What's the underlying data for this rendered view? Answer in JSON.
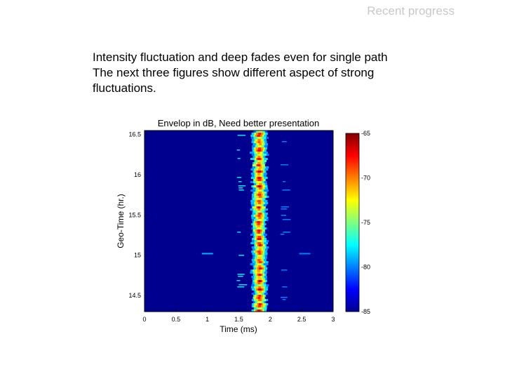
{
  "slide": {
    "section_title": "Recent progress",
    "body_lines": [
      "Intensity fluctuation and deep fades even for single path",
      "The next three figures show different aspect of strong",
      "fluctuations."
    ]
  },
  "chart_data": {
    "type": "heatmap",
    "title": "Envelop in dB, Need better presentation",
    "xlabel": "Time (ms)",
    "ylabel": "Geo-Time (hr.)",
    "xlim": [
      0,
      3
    ],
    "ylim": [
      14.3,
      16.55
    ],
    "x_ticks": [
      "0",
      "0.5",
      "1",
      "1.5",
      "2",
      "2.5",
      "3"
    ],
    "x_tick_values": [
      0,
      0.5,
      1,
      1.5,
      2,
      2.5,
      3
    ],
    "y_ticks": [
      "14.5",
      "15",
      "15.5",
      "16",
      "16.5"
    ],
    "y_tick_values": [
      14.5,
      15,
      15.5,
      16,
      16.5
    ],
    "colorbar": {
      "min": -85,
      "max": -65,
      "ticks": [
        "-65",
        "-70",
        "-75",
        "-80",
        "-85"
      ],
      "tick_values": [
        -65,
        -70,
        -75,
        -80,
        -85
      ],
      "colormap": "jet"
    },
    "background_level_db": -84,
    "main_arrival": {
      "center_time_ms": 1.83,
      "width_ms": 0.12,
      "peak_db": -66
    },
    "side_arrivals": [
      {
        "time_ms": 1.52,
        "level_db": -78
      },
      {
        "time_ms": 2.22,
        "level_db": -80
      }
    ],
    "isolated_streaks": [
      {
        "geo_time_hr": 15.02,
        "time_ms": 1.0,
        "level_db": -79
      },
      {
        "geo_time_hr": 15.02,
        "time_ms": 2.55,
        "level_db": -80
      }
    ]
  }
}
